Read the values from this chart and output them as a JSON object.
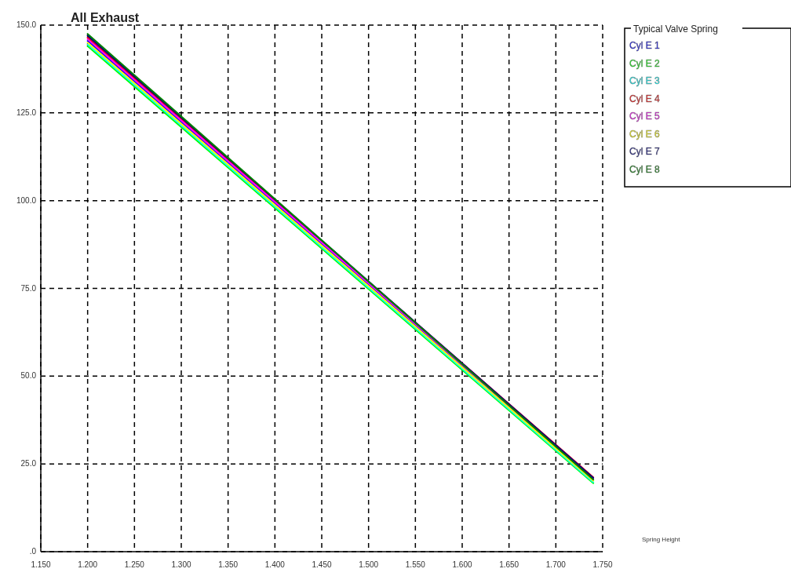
{
  "chart_data": {
    "type": "line",
    "title": "All Exhaust",
    "xlabel": "Spring Height",
    "legend_title": "Typical Valve Spring",
    "legend": "top right",
    "grid": true,
    "line_style": "solid",
    "marker": "none",
    "xlim": [
      1.15,
      1.75
    ],
    "xticks": [
      {
        "value": 1.15,
        "label": "1.150"
      },
      {
        "value": 1.2,
        "label": "1.200"
      },
      {
        "value": 1.25,
        "label": "1.250"
      },
      {
        "value": 1.3,
        "label": "1.300"
      },
      {
        "value": 1.35,
        "label": "1.350"
      },
      {
        "value": 1.4,
        "label": "1.400"
      },
      {
        "value": 1.45,
        "label": "1.450"
      },
      {
        "value": 1.5,
        "label": "1.500"
      },
      {
        "value": 1.55,
        "label": "1.550"
      },
      {
        "value": 1.6,
        "label": "1.600"
      },
      {
        "value": 1.65,
        "label": "1.650"
      },
      {
        "value": 1.7,
        "label": "1.700"
      },
      {
        "value": 1.75,
        "label": "1.750"
      }
    ],
    "ylim": [
      0,
      150
    ],
    "yticks": [
      {
        "value": 0,
        "label": ".0"
      },
      {
        "value": 25,
        "label": "25.0"
      },
      {
        "value": 50,
        "label": "50.0"
      },
      {
        "value": 75,
        "label": "75.0"
      },
      {
        "value": 100,
        "label": "100.0"
      },
      {
        "value": 125,
        "label": "125.0"
      },
      {
        "value": 150,
        "label": "150.0"
      }
    ],
    "x": [
      1.2,
      1.74
    ],
    "series": [
      {
        "name": "Cyl E 1",
        "color": "#0000ff",
        "values": [
          145.5,
          20.5
        ]
      },
      {
        "name": "Cyl E 2",
        "color": "#00ff00",
        "values": [
          144,
          19.5
        ]
      },
      {
        "name": "Cyl E 3",
        "color": "#00ffff",
        "values": [
          144.5,
          19.8
        ]
      },
      {
        "name": "Cyl E 4",
        "color": "#ff0000",
        "values": [
          146.5,
          21.2
        ]
      },
      {
        "name": "Cyl E 5",
        "color": "#ff00ff",
        "values": [
          146,
          20.8
        ]
      },
      {
        "name": "Cyl E 6",
        "color": "#ffff00",
        "values": [
          145,
          20.2
        ]
      },
      {
        "name": "Cyl E 7",
        "color": "#000080",
        "values": [
          147,
          21
        ]
      },
      {
        "name": "Cyl E 8",
        "color": "#008000",
        "values": [
          147.5,
          20.5
        ]
      }
    ]
  }
}
